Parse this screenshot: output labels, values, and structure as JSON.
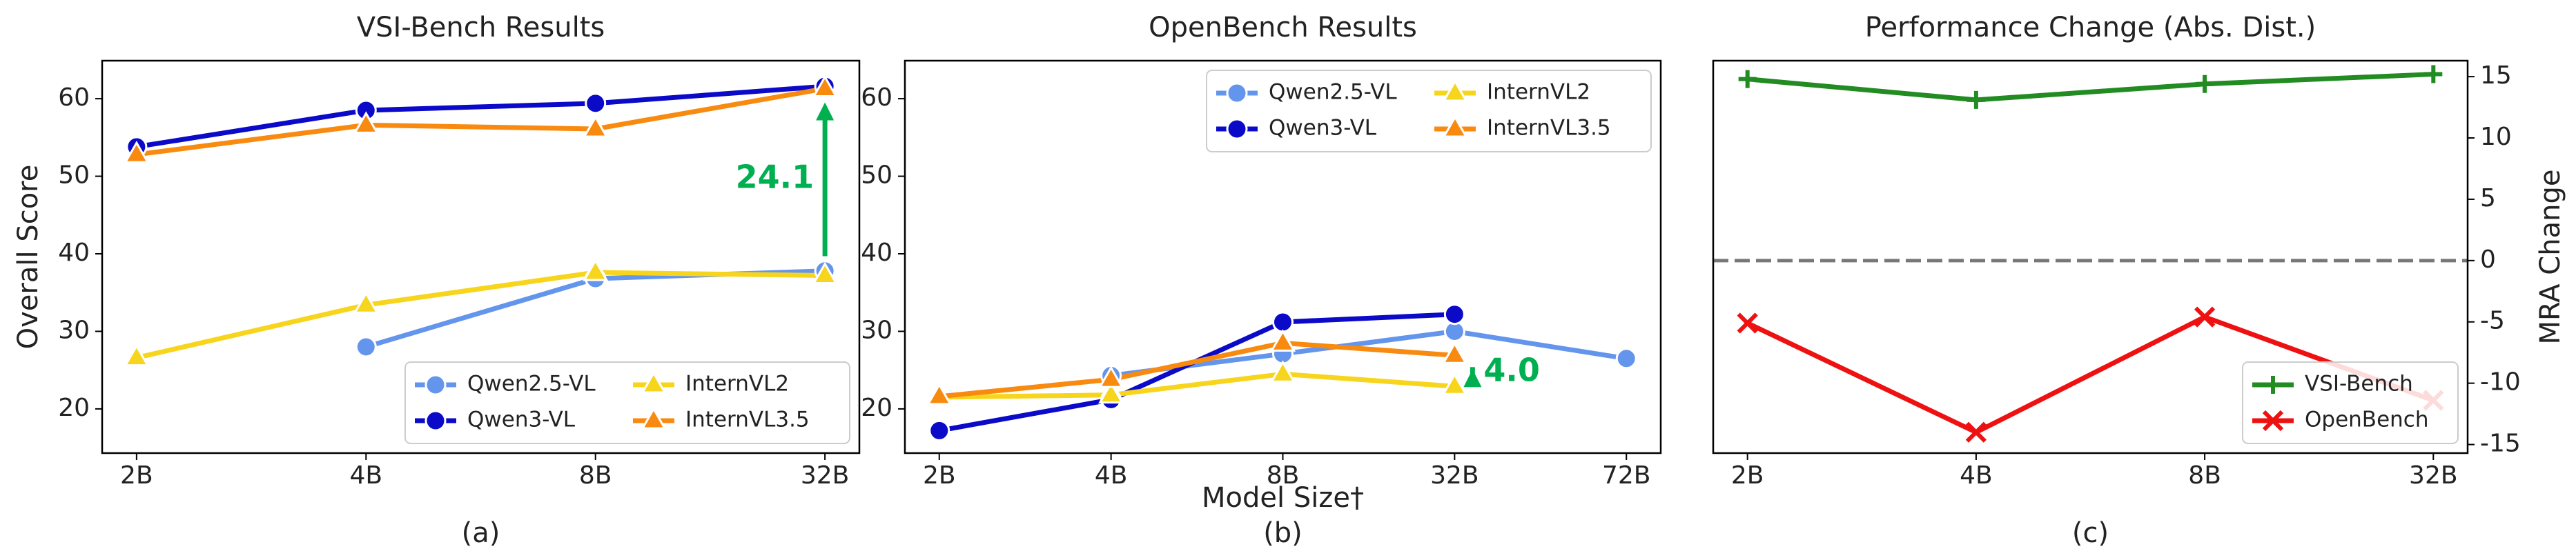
{
  "chart_data": [
    {
      "type": "line",
      "title": "VSI-Bench Results",
      "ylabel": "Overall Score",
      "caption": "(a)",
      "categories": [
        "2B",
        "4B",
        "8B",
        "32B"
      ],
      "series": [
        {
          "name": "Qwen2.5-VL",
          "color": "#6495ed",
          "marker": "circle",
          "values": [
            null,
            28.0,
            36.8,
            37.8
          ]
        },
        {
          "name": "Qwen3-VL",
          "color": "#0a0ac8",
          "marker": "circle",
          "values": [
            53.8,
            58.5,
            59.4,
            61.6
          ]
        },
        {
          "name": "InternVL2",
          "color": "#f7d51d",
          "marker": "triangle",
          "values": [
            26.6,
            33.4,
            37.6,
            37.2
          ]
        },
        {
          "name": "InternVL3.5",
          "color": "#f88a10",
          "marker": "triangle",
          "values": [
            52.8,
            56.6,
            56.1,
            61.3
          ]
        }
      ],
      "ylim": [
        14.3,
        64.9
      ],
      "yticks": [
        20,
        30,
        40,
        50,
        60
      ],
      "legend": "lower right",
      "legend_columns": 2,
      "annotation": {
        "text": "24.1",
        "color": "#00b050"
      }
    },
    {
      "type": "line",
      "title": "OpenBench Results",
      "xlabel": "Model Size†",
      "caption": "(b)",
      "categories": [
        "2B",
        "4B",
        "8B",
        "32B",
        "72B"
      ],
      "series": [
        {
          "name": "Qwen2.5-VL",
          "color": "#6495ed",
          "marker": "circle",
          "values": [
            null,
            24.3,
            27.1,
            30.0,
            26.5
          ]
        },
        {
          "name": "Qwen3-VL",
          "color": "#0a0ac8",
          "marker": "circle",
          "values": [
            17.2,
            21.2,
            31.2,
            32.2,
            null
          ]
        },
        {
          "name": "InternVL2",
          "color": "#f7d51d",
          "marker": "triangle",
          "values": [
            21.5,
            21.8,
            24.5,
            22.9,
            null
          ]
        },
        {
          "name": "InternVL3.5",
          "color": "#f88a10",
          "marker": "triangle",
          "values": [
            21.6,
            23.8,
            28.5,
            26.9,
            null
          ]
        }
      ],
      "ylim": [
        14.3,
        64.9
      ],
      "yticks": [
        20,
        30,
        40,
        50,
        60
      ],
      "legend": "upper right",
      "legend_columns": 2,
      "annotation": {
        "text": "4.0",
        "color": "#00b050"
      }
    },
    {
      "type": "line",
      "title": "Performance Change (Abs. Dist.)",
      "ylabel": "MRA Change",
      "caption": "(c)",
      "categories": [
        "2B",
        "4B",
        "8B",
        "32B"
      ],
      "series": [
        {
          "name": "VSI-Bench",
          "color": "#228b22",
          "marker": "plus",
          "values": [
            14.8,
            13.1,
            14.4,
            15.2
          ]
        },
        {
          "name": "OpenBench",
          "color": "#ee1111",
          "marker": "x",
          "values": [
            -5.1,
            -14.0,
            -4.6,
            -11.4
          ]
        }
      ],
      "ylim": [
        -15.7,
        16.3
      ],
      "yticks": [
        -15,
        -10,
        -5,
        0,
        5,
        10,
        15
      ],
      "y_axis_side": "right",
      "hline": 0,
      "legend": "lower right",
      "legend_columns": 1
    }
  ]
}
